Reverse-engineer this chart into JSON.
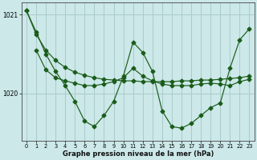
{
  "title": "Graphe pression niveau de la mer (hPa)",
  "background_color": "#cce8e8",
  "grid_color": "#aacccc",
  "line_color": "#1a5c1a",
  "marker_color": "#1a5c1a",
  "xlim_min": -0.5,
  "xlim_max": 23.5,
  "ylim_min": 1019.4,
  "ylim_max": 1021.15,
  "yticks": [
    1020,
    1021
  ],
  "xticks": [
    0,
    1,
    2,
    3,
    4,
    5,
    6,
    7,
    8,
    9,
    10,
    11,
    12,
    13,
    14,
    15,
    16,
    17,
    18,
    19,
    20,
    21,
    22,
    23
  ],
  "series1_x": [
    0,
    1,
    2,
    3,
    4,
    5,
    6,
    7,
    8,
    9,
    10,
    11,
    12,
    13,
    14,
    15,
    16,
    17,
    18,
    19,
    20,
    21,
    22,
    23
  ],
  "series1_y": [
    1021.05,
    1020.75,
    1020.55,
    1020.42,
    1020.33,
    1020.27,
    1020.23,
    1020.2,
    1020.18,
    1020.17,
    1020.16,
    1020.16,
    1020.15,
    1020.15,
    1020.15,
    1020.15,
    1020.16,
    1020.16,
    1020.17,
    1020.17,
    1020.18,
    1020.19,
    1020.2,
    1020.22
  ],
  "series2_x": [
    0,
    1,
    2,
    3,
    4,
    5,
    6,
    7,
    8,
    9,
    10,
    11,
    12,
    13,
    14,
    15,
    16,
    17,
    18,
    19,
    20,
    21,
    22,
    23
  ],
  "series2_y": [
    1021.05,
    1020.78,
    1020.5,
    1020.28,
    1020.1,
    1019.9,
    1019.65,
    1019.58,
    1019.72,
    1019.9,
    1020.22,
    1020.65,
    1020.52,
    1020.28,
    1019.78,
    1019.58,
    1019.56,
    1019.62,
    1019.72,
    1019.82,
    1019.88,
    1020.32,
    1020.68,
    1020.82
  ],
  "series3_x": [
    1,
    2,
    3,
    4,
    5,
    6,
    7,
    8,
    9,
    10,
    11,
    12,
    13,
    14,
    15,
    16,
    17,
    18,
    19,
    20,
    21,
    22,
    23
  ],
  "series3_y": [
    1020.55,
    1020.3,
    1020.2,
    1020.16,
    1020.13,
    1020.1,
    1020.1,
    1020.12,
    1020.15,
    1020.2,
    1020.32,
    1020.22,
    1020.16,
    1020.12,
    1020.1,
    1020.1,
    1020.1,
    1020.12,
    1020.13,
    1020.12,
    1020.1,
    1020.15,
    1020.18
  ]
}
